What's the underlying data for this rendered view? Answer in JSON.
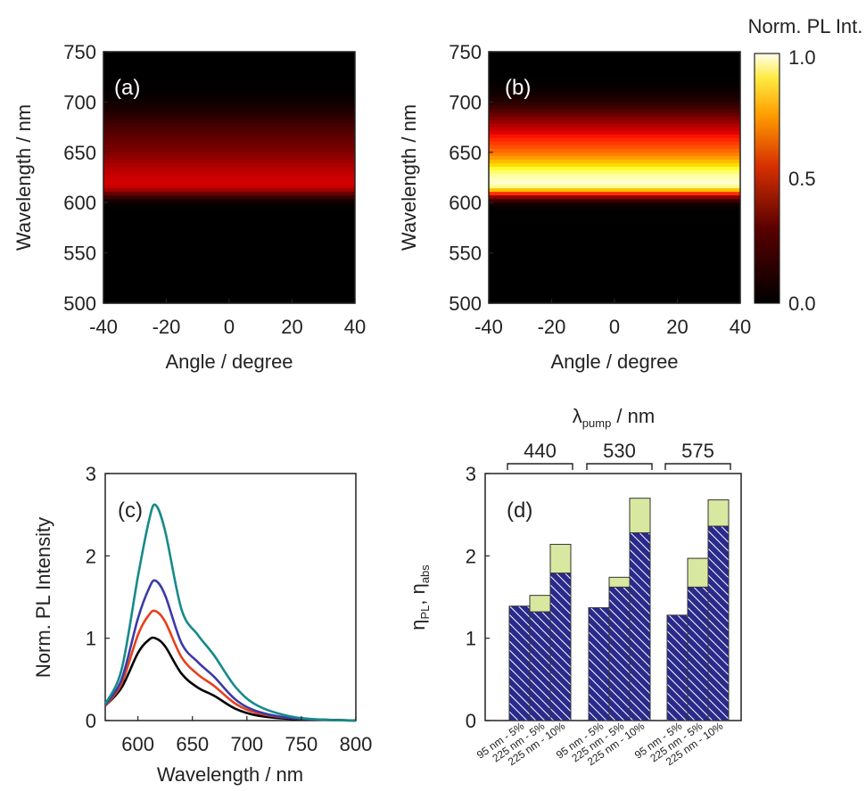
{
  "figure": {
    "colorbar": {
      "label": "Norm. PL Int.",
      "ticks": [
        "1.0",
        "0.5",
        "0.0"
      ],
      "values": [
        1.0,
        0.5,
        0.0
      ]
    }
  },
  "chart_data": [
    {
      "id": "a",
      "type": "heatmap",
      "panel_label": "(a)",
      "xlabel": "Angle / degree",
      "ylabel": "Wavelength / nm",
      "xlim": [
        -40,
        40
      ],
      "ylim": [
        500,
        750
      ],
      "xticks": [
        -40,
        -20,
        0,
        20,
        40
      ],
      "yticks": [
        500,
        550,
        600,
        650,
        700,
        750
      ],
      "peak_wavelength": 618,
      "peak_intensity": 0.38
    },
    {
      "id": "b",
      "type": "heatmap",
      "panel_label": "(b)",
      "xlabel": "Angle / degree",
      "ylabel": "Wavelength / nm",
      "xlim": [
        -40,
        40
      ],
      "ylim": [
        500,
        750
      ],
      "xticks": [
        -40,
        -20,
        0,
        20,
        40
      ],
      "yticks": [
        500,
        550,
        600,
        650,
        700,
        750
      ],
      "peak_wavelength": 618,
      "peak_intensity": 1.0
    },
    {
      "id": "c",
      "type": "line",
      "panel_label": "(c)",
      "xlabel": "Wavelength / nm",
      "ylabel": "Norm. PL Intensity",
      "xlim": [
        570,
        800
      ],
      "ylim": [
        0,
        3
      ],
      "xticks": [
        600,
        650,
        700,
        750,
        800
      ],
      "yticks": [
        0,
        1,
        2,
        3
      ],
      "x": [
        570,
        585,
        600,
        610,
        616,
        625,
        640,
        655,
        670,
        690,
        710,
        740,
        770,
        800
      ],
      "series": [
        {
          "color": "#000000",
          "values": [
            0.18,
            0.4,
            0.82,
            0.98,
            1.0,
            0.9,
            0.57,
            0.4,
            0.3,
            0.14,
            0.06,
            0.02,
            0.01,
            0.0
          ]
        },
        {
          "color": "#e8401c",
          "values": [
            0.18,
            0.45,
            1.04,
            1.28,
            1.33,
            1.2,
            0.77,
            0.56,
            0.42,
            0.2,
            0.09,
            0.03,
            0.01,
            0.0
          ]
        },
        {
          "color": "#3b3aa6",
          "values": [
            0.19,
            0.5,
            1.24,
            1.6,
            1.7,
            1.52,
            0.94,
            0.71,
            0.53,
            0.25,
            0.11,
            0.03,
            0.01,
            0.0
          ]
        },
        {
          "color": "#168a8a",
          "values": [
            0.2,
            0.62,
            1.75,
            2.42,
            2.62,
            2.3,
            1.35,
            1.04,
            0.79,
            0.4,
            0.18,
            0.05,
            0.01,
            0.0
          ]
        }
      ]
    },
    {
      "id": "d",
      "type": "bar",
      "panel_label": "(d)",
      "ylabel": "η_PL, η_abs",
      "ylim": [
        0,
        3
      ],
      "yticks": [
        0,
        1,
        2,
        3
      ],
      "top_axis_title": "λ",
      "top_axis_sub": "pump",
      "top_axis_unit": " / nm",
      "groups": [
        {
          "label": "440",
          "categories": [
            "95 nm - 5%",
            "225 nm - 5%",
            "225 nm - 10%"
          ],
          "eta_pl": [
            1.39,
            1.32,
            1.79
          ],
          "eta_abs": [
            1.39,
            1.52,
            2.14
          ]
        },
        {
          "label": "530",
          "categories": [
            "95 nm - 5%",
            "225 nm - 5%",
            "225 nm - 10%"
          ],
          "eta_pl": [
            1.37,
            1.62,
            2.28
          ],
          "eta_abs": [
            1.37,
            1.74,
            2.7
          ]
        },
        {
          "label": "575",
          "categories": [
            "95 nm - 5%",
            "225 nm - 5%",
            "225 nm - 10%"
          ],
          "eta_pl": [
            1.28,
            1.62,
            2.36
          ],
          "eta_abs": [
            1.28,
            1.97,
            2.68
          ]
        }
      ],
      "colors": {
        "eta_pl": "#2a2a8c",
        "eta_abs": "#d9e8a0"
      }
    }
  ]
}
